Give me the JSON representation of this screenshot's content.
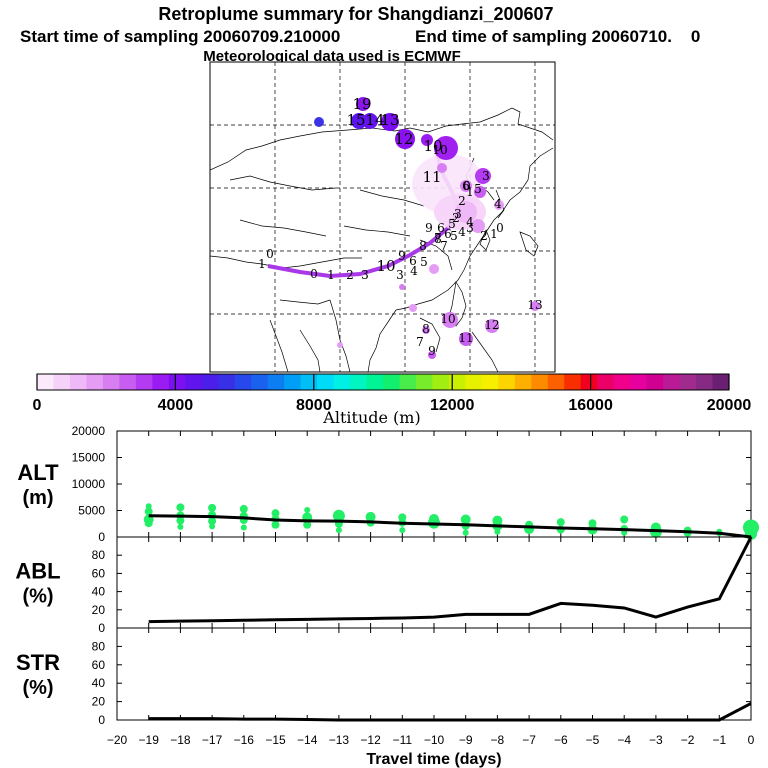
{
  "header": {
    "title": "Retroplume summary for Shangdianzi_200607",
    "start_label": "Start time of sampling 20060709.210000",
    "end_label": "End time of sampling 20060710.    0",
    "met_label": "Meteorological data used is ECMWF"
  },
  "colorbar": {
    "ticks": [
      "0",
      "4000",
      "8000",
      "12000",
      "16000",
      "20000"
    ],
    "label": "Altitude (m)",
    "colors": [
      "#fbeafb",
      "#f6d2f8",
      "#efb8f6",
      "#e59cf4",
      "#d77ef2",
      "#c85df1",
      "#b33bf1",
      "#9b1cf2",
      "#7d10f1",
      "#6214ee",
      "#4b1ee9",
      "#3730e6",
      "#2748ea",
      "#1a62ee",
      "#0c7ef2",
      "#009ef5",
      "#00bff7",
      "#00dcf8",
      "#00f0e6",
      "#00f5c0",
      "#00f395",
      "#12ef6e",
      "#48ec4b",
      "#78ec2a",
      "#a3ee12",
      "#c8f000",
      "#e6f100",
      "#f7ef00",
      "#fcd400",
      "#fdb000",
      "#fd8b00",
      "#fc6000",
      "#f82e00",
      "#f0001e",
      "#ec0068",
      "#f1008c",
      "#e600a0",
      "#d00092",
      "#bb1a96",
      "#a02a8e",
      "#862a84",
      "#6a1f72"
    ]
  },
  "map": {
    "plume_labels": [
      "19",
      "15",
      "14",
      "13",
      "12",
      "11",
      "10",
      "10",
      "9",
      "8",
      "7",
      "6",
      "5",
      "4",
      "3",
      "3",
      "2",
      "1",
      "0",
      "6",
      "5",
      "4",
      "3",
      "2",
      "1",
      "0",
      "10",
      "9",
      "8",
      "7",
      "6",
      "5",
      "4",
      "3",
      "2",
      "1",
      "0",
      "13",
      "12",
      "11",
      "10",
      "9",
      "8",
      "7",
      "6",
      "5",
      "4",
      "3",
      "2",
      "1",
      "0"
    ]
  },
  "chart_data": [
    {
      "type": "line",
      "panel": "ALT",
      "ylabel": "ALT\n(m)",
      "ylabel_lines": [
        "ALT",
        "(m)"
      ],
      "ylim": [
        0,
        20000
      ],
      "yticks": [
        0,
        5000,
        10000,
        15000,
        20000
      ],
      "ytick_labels": [
        "0",
        "5000",
        "10000",
        "15000",
        "20000"
      ],
      "x": [
        -19,
        -18,
        -17,
        -16,
        -15,
        -14,
        -13,
        -12,
        -11,
        -10,
        -9,
        -8,
        -7,
        -6,
        -5,
        -4,
        -3,
        -2,
        -1,
        0
      ],
      "series": [
        {
          "name": "mean altitude",
          "values": [
            4000,
            3950,
            3850,
            3600,
            3200,
            3050,
            3000,
            2850,
            2600,
            2450,
            2300,
            2100,
            1900,
            1700,
            1550,
            1400,
            1200,
            1000,
            700,
            0
          ]
        }
      ],
      "scatter": {
        "name": "plume altitude distribution",
        "color": "#22ee66",
        "points": [
          [
            -19,
            5800,
            3
          ],
          [
            -19,
            4800,
            4
          ],
          [
            -19,
            3300,
            5
          ],
          [
            -19,
            2600,
            4
          ],
          [
            -18,
            5600,
            4
          ],
          [
            -18,
            4100,
            4
          ],
          [
            -18,
            3100,
            4
          ],
          [
            -18,
            1900,
            3
          ],
          [
            -17,
            5500,
            4
          ],
          [
            -17,
            4200,
            4
          ],
          [
            -17,
            3000,
            4
          ],
          [
            -17,
            2000,
            3
          ],
          [
            -16,
            5300,
            4
          ],
          [
            -16,
            4000,
            4
          ],
          [
            -16,
            3200,
            4
          ],
          [
            -16,
            1800,
            3
          ],
          [
            -15,
            4500,
            4
          ],
          [
            -15,
            3400,
            4
          ],
          [
            -15,
            2300,
            4
          ],
          [
            -14,
            5100,
            3
          ],
          [
            -14,
            3700,
            5
          ],
          [
            -14,
            2300,
            4
          ],
          [
            -13,
            4000,
            6
          ],
          [
            -13,
            2500,
            4
          ],
          [
            -13,
            1300,
            3
          ],
          [
            -12,
            3800,
            5
          ],
          [
            -12,
            2700,
            4
          ],
          [
            -11,
            3700,
            4
          ],
          [
            -11,
            2700,
            4
          ],
          [
            -11,
            1300,
            3
          ],
          [
            -10,
            3400,
            5
          ],
          [
            -10,
            2700,
            6
          ],
          [
            -9,
            3300,
            5
          ],
          [
            -9,
            2100,
            4
          ],
          [
            -9,
            800,
            3
          ],
          [
            -8,
            3100,
            5
          ],
          [
            -8,
            2100,
            5
          ],
          [
            -8,
            1000,
            3
          ],
          [
            -7,
            2300,
            4
          ],
          [
            -7,
            1500,
            5
          ],
          [
            -6,
            2800,
            4
          ],
          [
            -6,
            1400,
            4
          ],
          [
            -5,
            2600,
            4
          ],
          [
            -5,
            1400,
            5
          ],
          [
            -4,
            3300,
            4
          ],
          [
            -4,
            1500,
            4
          ],
          [
            -4,
            800,
            3
          ],
          [
            -3,
            1800,
            5
          ],
          [
            -3,
            1000,
            6
          ],
          [
            -2,
            1200,
            4
          ],
          [
            -2,
            800,
            4
          ],
          [
            -1,
            1000,
            3
          ],
          [
            -1,
            700,
            3
          ],
          [
            0,
            1800,
            8
          ],
          [
            0,
            600,
            6
          ]
        ]
      }
    },
    {
      "type": "line",
      "panel": "ABL",
      "ylabel": "ABL\n(%)",
      "ylabel_lines": [
        "ABL",
        "(%)"
      ],
      "ylim": [
        0,
        100
      ],
      "yticks": [
        0,
        20,
        40,
        60,
        80
      ],
      "ytick_labels": [
        "0",
        "20",
        "40",
        "60",
        "80"
      ],
      "x": [
        -19,
        -18,
        -17,
        -16,
        -15,
        -14,
        -13,
        -12,
        -11,
        -10,
        -9,
        -8,
        -7,
        -6,
        -5,
        -4,
        -3,
        -2,
        -1,
        0
      ],
      "series": [
        {
          "name": "fraction in ABL",
          "values": [
            7,
            7.5,
            8,
            8.5,
            9,
            9.5,
            10,
            10.5,
            11,
            12,
            15,
            15,
            15,
            27,
            25,
            22,
            12,
            23,
            32,
            100
          ]
        }
      ]
    },
    {
      "type": "line",
      "panel": "STR",
      "ylabel": "STR\n(%)",
      "ylabel_lines": [
        "STR",
        "(%)"
      ],
      "ylim": [
        0,
        100
      ],
      "yticks": [
        0,
        20,
        40,
        60,
        80
      ],
      "ytick_labels": [
        "0",
        "20",
        "40",
        "60",
        "80"
      ],
      "x": [
        -19,
        -18,
        -17,
        -16,
        -15,
        -14,
        -13,
        -12,
        -11,
        -10,
        -9,
        -8,
        -7,
        -6,
        -5,
        -4,
        -3,
        -2,
        -1,
        0
      ],
      "series": [
        {
          "name": "fraction in stratosphere",
          "values": [
            1.5,
            1.5,
            1.5,
            1,
            1,
            0.5,
            0,
            0,
            0,
            0,
            0,
            0,
            0,
            0,
            0,
            0,
            0,
            0,
            0,
            18
          ]
        }
      ]
    }
  ],
  "xaxis": {
    "xlim": [
      -20,
      0
    ],
    "ticks": [
      -20,
      -19,
      -18,
      -17,
      -16,
      -15,
      -14,
      -13,
      -12,
      -11,
      -10,
      -9,
      -8,
      -7,
      -6,
      -5,
      -4,
      -3,
      -2,
      -1,
      0
    ],
    "tick_labels": [
      "−20",
      "−19",
      "−18",
      "−17",
      "−16",
      "−15",
      "−14",
      "−13",
      "−12",
      "−11",
      "−10",
      "−9",
      "−8",
      "−7",
      "−6",
      "−5",
      "−4",
      "−3",
      "−2",
      "−1",
      "0"
    ],
    "label": "Travel time (days)"
  }
}
